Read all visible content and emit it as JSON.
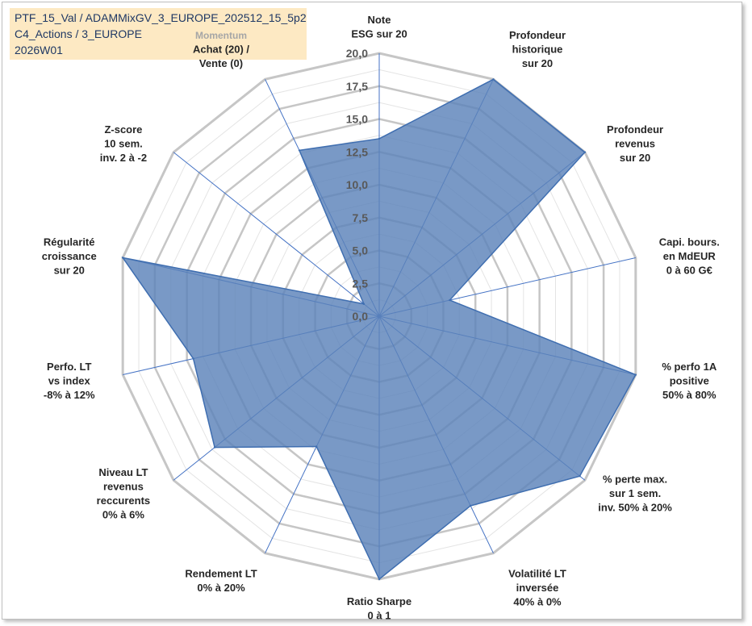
{
  "header": {
    "line1": "PTF_15_Val / ADAMMixGV_3_EUROPE_202512_15_5p2",
    "line2": "C4_Actions / 3_EUROPE",
    "line3": "2026W01"
  },
  "colors": {
    "fill": "#5b83b9",
    "stroke": "#3f6eb0",
    "grid": "#c6c6c6",
    "spoke": "#4472c4",
    "label": "#262626",
    "tick": "#595959",
    "momentum_caption": "#a6a6a6"
  },
  "chart_data": {
    "type": "radar",
    "rmin": 0,
    "rmax": 20,
    "tick_step": 2.5,
    "tick_labels": [
      "0,0",
      "2,5",
      "5,0",
      "7,5",
      "10,0",
      "12,5",
      "15,0",
      "17,5",
      "20,0"
    ],
    "grid": true,
    "legend": "none",
    "axes": [
      {
        "lines": [
          "Note",
          "ESG sur 20"
        ],
        "value": 13.5
      },
      {
        "lines": [
          "Profondeur",
          "historique",
          "sur 20"
        ],
        "value": 20
      },
      {
        "lines": [
          "Profondeur",
          "revenus",
          "sur 20"
        ],
        "value": 20
      },
      {
        "lines": [
          "Capi. bours.",
          "en MdEUR",
          "0 à 60 G€"
        ],
        "value": 5.5
      },
      {
        "lines": [
          "% perfo 1A",
          "positive",
          "50% à 80%"
        ],
        "value": 20
      },
      {
        "lines": [
          "% perte max.",
          "sur 1 sem.",
          "inv. 50% à 20%"
        ],
        "value": 19.5
      },
      {
        "lines": [
          "Volatilité LT",
          "inversée",
          "40% à 0%"
        ],
        "value": 16
      },
      {
        "lines": [
          "Ratio Sharpe",
          "0 à 1"
        ],
        "value": 20
      },
      {
        "lines": [
          "Rendement LT",
          "0% à 20%"
        ],
        "value": 11
      },
      {
        "lines": [
          "Niveau LT",
          "revenus",
          "reccurents",
          "0% à 6%"
        ],
        "value": 16
      },
      {
        "lines": [
          "Perfo. LT",
          "vs index",
          "-8% à 12%"
        ],
        "value": 14.5
      },
      {
        "lines": [
          "Régularité",
          "croissance",
          "sur 20"
        ],
        "value": 20
      },
      {
        "lines": [
          "Z-score",
          "10 sem.",
          "inv. 2 à -2"
        ],
        "value": 1.5
      },
      {
        "caption": "Momentum",
        "lines": [
          "Achat (20) /",
          "Vente (0)"
        ],
        "value": 14
      }
    ]
  }
}
